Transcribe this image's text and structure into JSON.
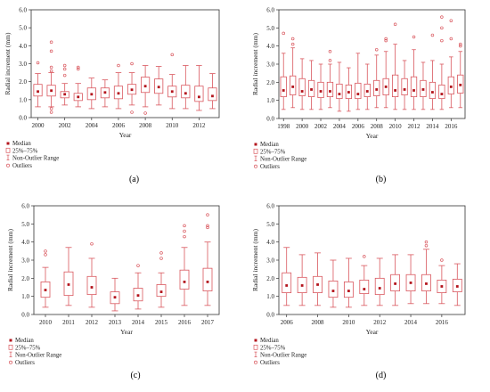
{
  "colors": {
    "box": "#d9575e",
    "median": "#b3141c",
    "axis": "#333333",
    "text": "#222222"
  },
  "legend_labels": {
    "median": "Median",
    "iqr": "25%–75%",
    "range": "Non-Outlier Range",
    "outliers": "Outliers"
  },
  "chart_data": [
    {
      "type": "boxplot",
      "panel_label": "(a)",
      "xlabel": "Year",
      "ylabel": "Radial increment (mm)",
      "ylim": [
        0,
        6
      ],
      "yticks": [
        "0.0",
        "1.0",
        "2.0",
        "3.0",
        "4.0",
        "5.0",
        "6.0"
      ],
      "xtick_labels": [
        "2000",
        "2002",
        "2004",
        "2006",
        "2008",
        "2010",
        "2012"
      ],
      "xtick_every": 2,
      "categories": [
        "2000",
        "2001",
        "2002",
        "2003",
        "2004",
        "2005",
        "2006",
        "2007",
        "2008",
        "2009",
        "2010",
        "2011",
        "2012",
        "2013"
      ],
      "boxes": [
        {
          "q1": 1.2,
          "median": 1.45,
          "q3": 1.85,
          "min": 0.6,
          "max": 2.45,
          "outliers": [
            3.05
          ]
        },
        {
          "q1": 1.2,
          "median": 1.5,
          "q3": 1.8,
          "min": 0.6,
          "max": 2.5,
          "outliers": [
            4.2,
            3.7,
            2.6,
            2.8,
            0.5,
            0.3
          ]
        },
        {
          "q1": 1.1,
          "median": 1.3,
          "q3": 1.45,
          "min": 0.7,
          "max": 1.9,
          "outliers": [
            2.9,
            2.7,
            2.35
          ]
        },
        {
          "q1": 0.95,
          "median": 1.15,
          "q3": 1.35,
          "min": 0.6,
          "max": 1.9,
          "outliers": [
            2.8,
            2.7
          ]
        },
        {
          "q1": 1.0,
          "median": 1.3,
          "q3": 1.65,
          "min": 0.5,
          "max": 2.2,
          "outliers": []
        },
        {
          "q1": 1.1,
          "median": 1.4,
          "q3": 1.65,
          "min": 0.6,
          "max": 2.1,
          "outliers": []
        },
        {
          "q1": 1.05,
          "median": 1.35,
          "q3": 1.75,
          "min": 0.5,
          "max": 2.5,
          "outliers": [
            2.9
          ]
        },
        {
          "q1": 1.3,
          "median": 1.55,
          "q3": 1.85,
          "min": 0.7,
          "max": 2.5,
          "outliers": [
            3.0,
            0.3
          ]
        },
        {
          "q1": 1.4,
          "median": 1.75,
          "q3": 2.25,
          "min": 0.6,
          "max": 2.9,
          "outliers": [
            0.25
          ]
        },
        {
          "q1": 1.35,
          "median": 1.7,
          "q3": 2.15,
          "min": 0.7,
          "max": 2.85,
          "outliers": []
        },
        {
          "q1": 1.15,
          "median": 1.45,
          "q3": 1.75,
          "min": 0.5,
          "max": 2.4,
          "outliers": [
            3.5
          ]
        },
        {
          "q1": 1.1,
          "median": 1.35,
          "q3": 1.8,
          "min": 0.5,
          "max": 2.9,
          "outliers": []
        },
        {
          "q1": 0.9,
          "median": 1.15,
          "q3": 1.75,
          "min": 0.4,
          "max": 2.9,
          "outliers": []
        },
        {
          "q1": 0.95,
          "median": 1.2,
          "q3": 1.65,
          "min": 0.5,
          "max": 2.45,
          "outliers": []
        }
      ]
    },
    {
      "type": "boxplot",
      "panel_label": "(b)",
      "xlabel": "Year",
      "ylabel": "Radial increment (mm)",
      "ylim": [
        0,
        6
      ],
      "yticks": [
        "0.0",
        "1.0",
        "2.0",
        "3.0",
        "4.0",
        "5.0",
        "6.0"
      ],
      "xtick_labels": [
        "1998",
        "2000",
        "2002",
        "2004",
        "2006",
        "2008",
        "2010",
        "2012",
        "2014",
        "2016"
      ],
      "xtick_every": 2,
      "categories": [
        "1998",
        "1999",
        "2000",
        "2001",
        "2002",
        "2003",
        "2004",
        "2005",
        "2006",
        "2007",
        "2008",
        "2009",
        "2010",
        "2011",
        "2012",
        "2013",
        "2014",
        "2015",
        "2016",
        "2017"
      ],
      "boxes": [
        {
          "q1": 1.2,
          "median": 1.55,
          "q3": 2.3,
          "min": 0.5,
          "max": 3.6,
          "outliers": [
            4.7
          ]
        },
        {
          "q1": 1.3,
          "median": 1.75,
          "q3": 2.35,
          "min": 0.6,
          "max": 3.9,
          "outliers": [
            4.4,
            4.1
          ]
        },
        {
          "q1": 1.25,
          "median": 1.5,
          "q3": 2.2,
          "min": 0.5,
          "max": 3.3,
          "outliers": []
        },
        {
          "q1": 1.2,
          "median": 1.6,
          "q3": 2.1,
          "min": 0.5,
          "max": 3.2,
          "outliers": []
        },
        {
          "q1": 1.15,
          "median": 1.5,
          "q3": 2.0,
          "min": 0.5,
          "max": 3.0,
          "outliers": []
        },
        {
          "q1": 1.2,
          "median": 1.5,
          "q3": 2.0,
          "min": 0.6,
          "max": 3.0,
          "outliers": [
            3.7,
            3.2
          ]
        },
        {
          "q1": 1.1,
          "median": 1.35,
          "q3": 1.9,
          "min": 0.4,
          "max": 3.1,
          "outliers": []
        },
        {
          "q1": 1.1,
          "median": 1.45,
          "q3": 1.85,
          "min": 0.4,
          "max": 2.8,
          "outliers": []
        },
        {
          "q1": 1.1,
          "median": 1.35,
          "q3": 1.95,
          "min": 0.5,
          "max": 3.6,
          "outliers": []
        },
        {
          "q1": 1.2,
          "median": 1.5,
          "q3": 1.9,
          "min": 0.5,
          "max": 3.0,
          "outliers": []
        },
        {
          "q1": 1.25,
          "median": 1.6,
          "q3": 2.1,
          "min": 0.6,
          "max": 3.5,
          "outliers": [
            3.8
          ]
        },
        {
          "q1": 1.3,
          "median": 1.75,
          "q3": 2.2,
          "min": 0.6,
          "max": 3.7,
          "outliers": [
            4.3,
            4.4
          ]
        },
        {
          "q1": 1.2,
          "median": 1.55,
          "q3": 2.4,
          "min": 0.5,
          "max": 4.1,
          "outliers": [
            5.2
          ]
        },
        {
          "q1": 1.3,
          "median": 1.6,
          "q3": 2.2,
          "min": 0.5,
          "max": 3.2,
          "outliers": []
        },
        {
          "q1": 1.2,
          "median": 1.55,
          "q3": 2.3,
          "min": 0.5,
          "max": 3.8,
          "outliers": [
            4.5
          ]
        },
        {
          "q1": 1.2,
          "median": 1.6,
          "q3": 2.1,
          "min": 0.5,
          "max": 3.1,
          "outliers": []
        },
        {
          "q1": 1.1,
          "median": 1.45,
          "q3": 2.0,
          "min": 0.5,
          "max": 3.2,
          "outliers": [
            4.6
          ]
        },
        {
          "q1": 1.1,
          "median": 1.35,
          "q3": 1.85,
          "min": 0.5,
          "max": 3.0,
          "outliers": [
            5.6,
            5.0,
            4.3
          ]
        },
        {
          "q1": 1.35,
          "median": 1.75,
          "q3": 2.3,
          "min": 0.6,
          "max": 3.4,
          "outliers": [
            5.4,
            4.4
          ]
        },
        {
          "q1": 1.4,
          "median": 1.85,
          "q3": 2.4,
          "min": 0.6,
          "max": 3.7,
          "outliers": [
            4.0,
            4.1
          ]
        }
      ]
    },
    {
      "type": "boxplot",
      "panel_label": "(c)",
      "xlabel": "Year",
      "ylabel": "Radial increment (mm)",
      "ylim": [
        0,
        6
      ],
      "yticks": [
        "0.0",
        "1.0",
        "2.0",
        "3.0",
        "4.0",
        "5.0",
        "6.0"
      ],
      "xtick_labels": [
        "2010",
        "2011",
        "2012",
        "2013",
        "2014",
        "2015",
        "2016",
        "2017"
      ],
      "xtick_every": 1,
      "categories": [
        "2010",
        "2011",
        "2012",
        "2013",
        "2014",
        "2015",
        "2016",
        "2017"
      ],
      "boxes": [
        {
          "q1": 0.95,
          "median": 1.35,
          "q3": 1.8,
          "min": 0.4,
          "max": 2.6,
          "outliers": [
            3.5,
            3.3
          ]
        },
        {
          "q1": 1.05,
          "median": 1.65,
          "q3": 2.35,
          "min": 0.5,
          "max": 3.7,
          "outliers": []
        },
        {
          "q1": 1.1,
          "median": 1.5,
          "q3": 2.1,
          "min": 0.4,
          "max": 3.1,
          "outliers": [
            3.9
          ]
        },
        {
          "q1": 0.6,
          "median": 0.95,
          "q3": 1.25,
          "min": 0.2,
          "max": 2.0,
          "outliers": []
        },
        {
          "q1": 0.75,
          "median": 1.05,
          "q3": 1.45,
          "min": 0.3,
          "max": 2.3,
          "outliers": [
            2.7
          ]
        },
        {
          "q1": 1.0,
          "median": 1.25,
          "q3": 1.65,
          "min": 0.4,
          "max": 2.3,
          "outliers": [
            3.4,
            3.1
          ]
        },
        {
          "q1": 1.4,
          "median": 1.8,
          "q3": 2.45,
          "min": 0.5,
          "max": 3.7,
          "outliers": [
            4.9,
            4.6,
            4.3
          ]
        },
        {
          "q1": 1.3,
          "median": 1.8,
          "q3": 2.55,
          "min": 0.5,
          "max": 4.0,
          "outliers": [
            5.5,
            4.9,
            4.8
          ]
        }
      ]
    },
    {
      "type": "boxplot",
      "panel_label": "(d)",
      "xlabel": "Year",
      "ylabel": "Radial increment (mm)",
      "ylim": [
        0,
        6
      ],
      "yticks": [
        "0.0",
        "1.0",
        "2.0",
        "3.0",
        "4.0",
        "5.0",
        "6.0"
      ],
      "xtick_labels": [
        "2006",
        "2008",
        "2010",
        "2012",
        "2014",
        "2016"
      ],
      "xtick_every": 2,
      "categories": [
        "2006",
        "2007",
        "2008",
        "2009",
        "2010",
        "2011",
        "2012",
        "2013",
        "2014",
        "2015",
        "2016",
        "2017"
      ],
      "boxes": [
        {
          "q1": 1.2,
          "median": 1.6,
          "q3": 2.3,
          "min": 0.5,
          "max": 3.7,
          "outliers": []
        },
        {
          "q1": 1.2,
          "median": 1.6,
          "q3": 2.05,
          "min": 0.5,
          "max": 3.3,
          "outliers": []
        },
        {
          "q1": 1.2,
          "median": 1.65,
          "q3": 2.1,
          "min": 0.5,
          "max": 3.4,
          "outliers": []
        },
        {
          "q1": 0.95,
          "median": 1.3,
          "q3": 1.85,
          "min": 0.4,
          "max": 3.0,
          "outliers": []
        },
        {
          "q1": 0.95,
          "median": 1.3,
          "q3": 1.8,
          "min": 0.4,
          "max": 3.1,
          "outliers": []
        },
        {
          "q1": 1.15,
          "median": 1.4,
          "q3": 1.9,
          "min": 0.5,
          "max": 2.7,
          "outliers": [
            3.2
          ]
        },
        {
          "q1": 1.1,
          "median": 1.45,
          "q3": 2.0,
          "min": 0.5,
          "max": 3.1,
          "outliers": []
        },
        {
          "q1": 1.3,
          "median": 1.7,
          "q3": 2.2,
          "min": 0.5,
          "max": 3.3,
          "outliers": []
        },
        {
          "q1": 1.3,
          "median": 1.75,
          "q3": 2.2,
          "min": 0.6,
          "max": 3.3,
          "outliers": []
        },
        {
          "q1": 1.3,
          "median": 1.7,
          "q3": 2.2,
          "min": 0.6,
          "max": 3.6,
          "outliers": [
            4.0,
            3.8
          ]
        },
        {
          "q1": 1.2,
          "median": 1.55,
          "q3": 1.9,
          "min": 0.6,
          "max": 2.7,
          "outliers": [
            3.0
          ]
        },
        {
          "q1": 1.25,
          "median": 1.55,
          "q3": 1.95,
          "min": 0.5,
          "max": 2.8,
          "outliers": []
        }
      ]
    }
  ]
}
